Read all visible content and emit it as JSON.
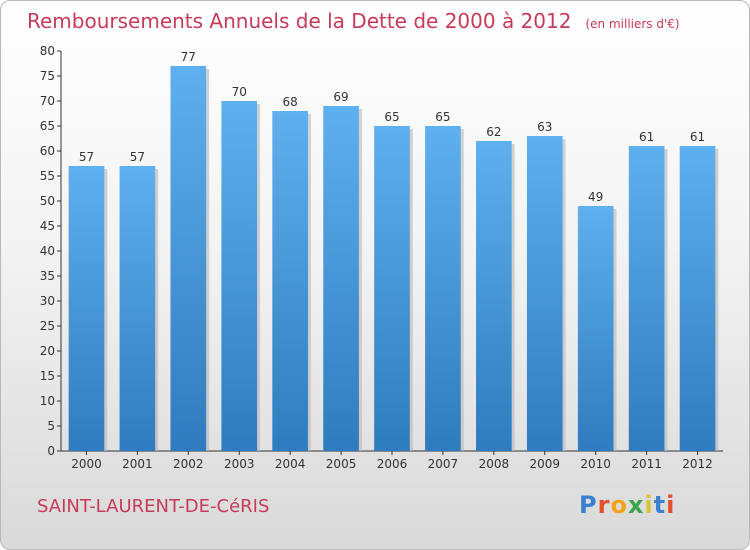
{
  "title": "Remboursements Annuels de la Dette de 2000 à 2012",
  "title_unit": "(en milliers d'€)",
  "commune": "SAINT-LAURENT-DE-CéRIS",
  "logo": {
    "letters": [
      "P",
      "r",
      "o",
      "x",
      "i",
      "t",
      "i"
    ]
  },
  "colors": {
    "bar": "#4a97db",
    "title": "#c83a5a",
    "axis": "#333333"
  },
  "chart_data": {
    "type": "bar",
    "categories": [
      "2000",
      "2001",
      "2002",
      "2003",
      "2004",
      "2005",
      "2006",
      "2007",
      "2008",
      "2009",
      "2010",
      "2011",
      "2012"
    ],
    "values": [
      57,
      57,
      77,
      70,
      68,
      69,
      65,
      65,
      62,
      63,
      49,
      61,
      61
    ],
    "data_labels": [
      "57",
      "57",
      "77",
      "70",
      "68",
      "69",
      "65",
      "65",
      "62",
      "63",
      "49",
      "61",
      "61"
    ],
    "ylim": [
      0,
      80
    ],
    "yticks": [
      0,
      5,
      10,
      15,
      20,
      25,
      30,
      35,
      40,
      45,
      50,
      55,
      60,
      65,
      70,
      75,
      80
    ],
    "grid": false,
    "legend": "none"
  }
}
